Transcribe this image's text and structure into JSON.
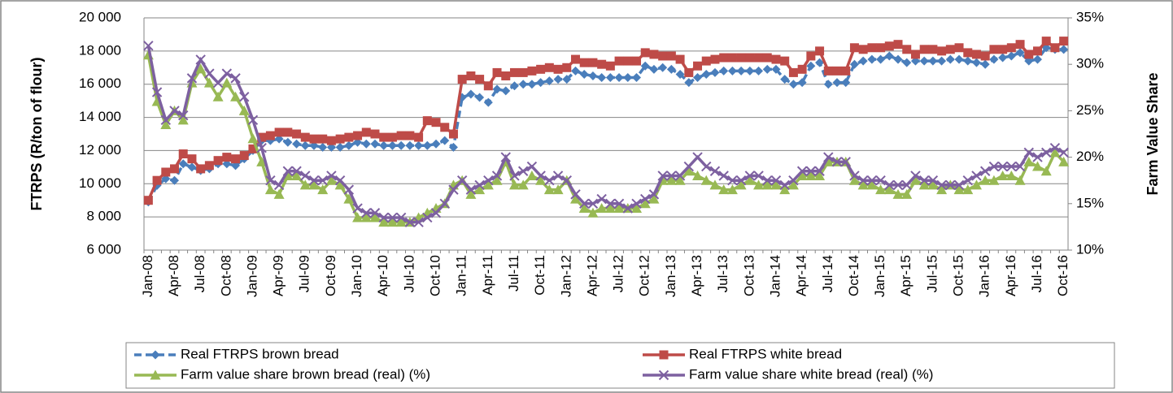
{
  "chart_data": {
    "type": "line",
    "y_label": "FTRPS (R/ton of flour)",
    "y2_label": "Farm Value Share",
    "categories": [
      "Jan-08",
      null,
      null,
      "Apr-08",
      null,
      null,
      "Jul-08",
      null,
      null,
      "Oct-08",
      null,
      null,
      "Jan-09",
      null,
      null,
      "Apr-09",
      null,
      null,
      "Jul-09",
      null,
      null,
      "Oct-09",
      null,
      null,
      "Jan-10",
      null,
      null,
      "Apr-10",
      null,
      null,
      "Jul-10",
      null,
      null,
      "Oct-10",
      null,
      null,
      "Jan-11",
      null,
      null,
      "Apr-11",
      null,
      null,
      "Jul-11",
      null,
      null,
      "Oct-11",
      null,
      null,
      "Jan-12",
      null,
      null,
      "Apr-12",
      null,
      null,
      "Jul-12",
      null,
      null,
      "Oct-12",
      null,
      null,
      "Jan-13",
      null,
      null,
      "Apr-13",
      null,
      null,
      "Jul-13",
      null,
      null,
      "Oct-13",
      null,
      null,
      "Jan-14",
      null,
      null,
      "Apr-14",
      null,
      null,
      "Jul-14",
      null,
      null,
      "Oct-14",
      null,
      null,
      "Jan-15",
      null,
      null,
      "Apr-15",
      null,
      null,
      "Jul-15",
      null,
      null,
      "Oct-15",
      null,
      null,
      "Jan-16",
      null,
      null,
      "Apr-16",
      null,
      null,
      "Jul-16",
      null,
      null,
      "Oct-16"
    ],
    "series": [
      {
        "name": "Real FTRPS brown bread",
        "color": "#4a7ebb",
        "marker": "diamond",
        "line_style": "dashed",
        "axis": "y",
        "values": [
          8900,
          9900,
          10300,
          10200,
          11200,
          11000,
          10800,
          10900,
          11200,
          11200,
          11100,
          11500,
          12000,
          12600,
          12600,
          12700,
          12500,
          12400,
          12300,
          12300,
          12200,
          12200,
          12200,
          12300,
          12500,
          12400,
          12400,
          12300,
          12300,
          12300,
          12300,
          12300,
          12300,
          12400,
          12600,
          12200,
          15200,
          15400,
          15200,
          14900,
          15700,
          15600,
          15900,
          16000,
          16000,
          16100,
          16200,
          16300,
          16300,
          16800,
          16600,
          16500,
          16400,
          16400,
          16400,
          16400,
          16400,
          17100,
          16900,
          17000,
          16900,
          16600,
          16100,
          16400,
          16600,
          16700,
          16800,
          16800,
          16800,
          16800,
          16800,
          16900,
          16900,
          16300,
          16000,
          16100,
          17100,
          17300,
          16000,
          16100,
          16100,
          17200,
          17400,
          17500,
          17500,
          17700,
          17500,
          17300,
          17400,
          17400,
          17400,
          17400,
          17500,
          17500,
          17400,
          17300,
          17200,
          17500,
          17600,
          17700,
          17900,
          17400,
          17500,
          18200,
          18100,
          18100
        ]
      },
      {
        "name": "Real FTRPS white bread",
        "color": "#be4b48",
        "marker": "square",
        "line_style": "solid",
        "axis": "y",
        "values": [
          9000,
          10200,
          10700,
          10900,
          11800,
          11500,
          10900,
          11100,
          11400,
          11600,
          11500,
          11700,
          12100,
          12800,
          12900,
          13100,
          13100,
          13000,
          12800,
          12700,
          12700,
          12600,
          12700,
          12800,
          12900,
          13100,
          13000,
          12800,
          12800,
          12900,
          12900,
          12800,
          13800,
          13700,
          13400,
          13000,
          16300,
          16500,
          16300,
          15900,
          16700,
          16500,
          16700,
          16700,
          16800,
          16900,
          17000,
          16900,
          17000,
          17500,
          17300,
          17300,
          17200,
          17100,
          17400,
          17400,
          17400,
          17900,
          17800,
          17700,
          17700,
          17500,
          16700,
          17100,
          17400,
          17500,
          17600,
          17600,
          17600,
          17600,
          17600,
          17600,
          17500,
          17400,
          16700,
          16900,
          17700,
          18000,
          16800,
          16800,
          16800,
          18200,
          18100,
          18200,
          18200,
          18300,
          18400,
          18100,
          17800,
          18100,
          18100,
          18000,
          18100,
          18200,
          17900,
          17800,
          17700,
          18100,
          18100,
          18200,
          18400,
          17800,
          18000,
          18600,
          18200,
          18600
        ]
      },
      {
        "name": "Farm value share brown bread (real) (%)",
        "color": "#98b954",
        "marker": "triangle",
        "line_style": "solid",
        "axis": "y2",
        "values": [
          31,
          26,
          23.5,
          25,
          24,
          28,
          29.5,
          28,
          26.5,
          28,
          26.5,
          25,
          22,
          19.5,
          16.5,
          16,
          18,
          18,
          17,
          17,
          16.5,
          17.5,
          17,
          15.5,
          13.5,
          13.5,
          13.5,
          13,
          13,
          13,
          13,
          13.5,
          14,
          14.5,
          15,
          17,
          17.5,
          16,
          16.5,
          17,
          17.5,
          19.5,
          17,
          17,
          18,
          17.5,
          16.5,
          16.5,
          17.5,
          15.5,
          14.5,
          14,
          14.5,
          14.5,
          14.5,
          14.5,
          14.5,
          15,
          15.5,
          17.5,
          17.5,
          17.5,
          18.5,
          18,
          17.5,
          17,
          16.5,
          16.5,
          17,
          17.5,
          17,
          17,
          17,
          16.5,
          17,
          18,
          18,
          18,
          19.5,
          19.5,
          19.5,
          17.5,
          17,
          17,
          16.5,
          16.5,
          16,
          16,
          17.5,
          17,
          17,
          16.5,
          17,
          16.5,
          16.5,
          17,
          17.5,
          17.5,
          18,
          18,
          17.5,
          19.5,
          19,
          18.5,
          20.5,
          19.5
        ]
      },
      {
        "name": "Farm value share white bread (real) (%)",
        "color": "#7d60a0",
        "marker": "cross",
        "line_style": "solid",
        "axis": "y2",
        "values": [
          32,
          27,
          24,
          25,
          24.5,
          28.5,
          30.5,
          29,
          28,
          29,
          28.5,
          26.5,
          24,
          21,
          17.5,
          17,
          18.5,
          18.5,
          18,
          17.5,
          17.5,
          18,
          17.5,
          16.5,
          14.5,
          14,
          14,
          13.5,
          13.5,
          13.5,
          13,
          13,
          13.5,
          14,
          15,
          16.5,
          17.5,
          16.5,
          17,
          17.5,
          18,
          20,
          18,
          18.5,
          19,
          18,
          17.5,
          18,
          17.5,
          16,
          15,
          15,
          15.5,
          15,
          15,
          14.5,
          15,
          15.5,
          16,
          18,
          18,
          18,
          19,
          20,
          19,
          18.5,
          18,
          17.5,
          17.5,
          18,
          18,
          17.5,
          17.5,
          17,
          17.5,
          18.5,
          18.5,
          18.5,
          20,
          19.5,
          19.5,
          18,
          17.5,
          17.5,
          17.5,
          17,
          17,
          17,
          18,
          17.5,
          17.5,
          17,
          17,
          17,
          17.5,
          18,
          18.5,
          19,
          19,
          19,
          19,
          20.5,
          20,
          20.5,
          21,
          20.5
        ]
      }
    ],
    "ylim": [
      6000,
      20000
    ],
    "yticks": [
      {
        "value": 6000,
        "label": "6 000"
      },
      {
        "value": 8000,
        "label": "8 000"
      },
      {
        "value": 10000,
        "label": "10 000"
      },
      {
        "value": 12000,
        "label": "12 000"
      },
      {
        "value": 14000,
        "label": "14 000"
      },
      {
        "value": 16000,
        "label": "16 000"
      },
      {
        "value": 18000,
        "label": "18 000"
      },
      {
        "value": 20000,
        "label": "20 000"
      }
    ],
    "y2lim": [
      10,
      35
    ],
    "y2ticks": [
      {
        "value": 10,
        "label": "10%"
      },
      {
        "value": 15,
        "label": "15%"
      },
      {
        "value": 20,
        "label": "20%"
      },
      {
        "value": 25,
        "label": "25%"
      },
      {
        "value": 30,
        "label": "30%"
      },
      {
        "value": 35,
        "label": "35%"
      }
    ],
    "grid": true
  }
}
